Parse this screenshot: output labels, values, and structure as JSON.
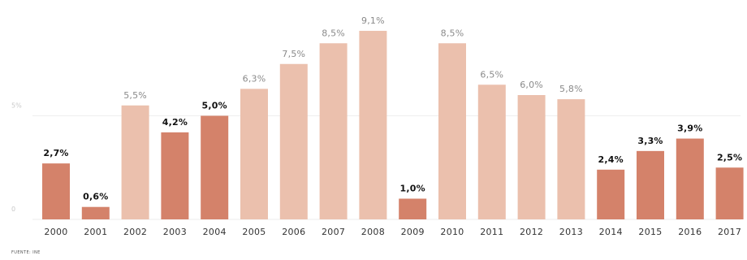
{
  "chart_data": {
    "type": "bar",
    "categories": [
      "2000",
      "2001",
      "2002",
      "2003",
      "2004",
      "2005",
      "2006",
      "2007",
      "2008",
      "2009",
      "2010",
      "2011",
      "2012",
      "2013",
      "2014",
      "2015",
      "2016",
      "2017"
    ],
    "values": [
      2.7,
      0.6,
      5.5,
      4.2,
      5.0,
      6.3,
      7.5,
      8.5,
      9.1,
      1.0,
      8.5,
      6.5,
      6.0,
      5.8,
      2.4,
      3.3,
      3.9,
      2.5
    ],
    "labels": [
      "2,7%",
      "0,6%",
      "5,5%",
      "4,2%",
      "5,0%",
      "6,3%",
      "7,5%",
      "8,5%",
      "9,1%",
      "1,0%",
      "8,5%",
      "6,5%",
      "6,0%",
      "5,8%",
      "2,4%",
      "3,3%",
      "3,9%",
      "2,5%"
    ],
    "highlighted": [
      true,
      true,
      false,
      true,
      true,
      false,
      false,
      false,
      false,
      true,
      false,
      false,
      false,
      false,
      true,
      true,
      true,
      true
    ],
    "y_ticks": [
      {
        "value": 0,
        "label": "0"
      },
      {
        "value": 5,
        "label": "5%"
      }
    ],
    "ylim": [
      0,
      10
    ],
    "grid": true,
    "title": "",
    "xlabel": "",
    "ylabel": "",
    "source": "FUENTE: INE",
    "colors": {
      "highlight": "#d4826a",
      "muted": "#ebc0ad",
      "grid": "#eeeeee",
      "label_dark": "#111111",
      "label_light": "#8a8a8a"
    }
  }
}
